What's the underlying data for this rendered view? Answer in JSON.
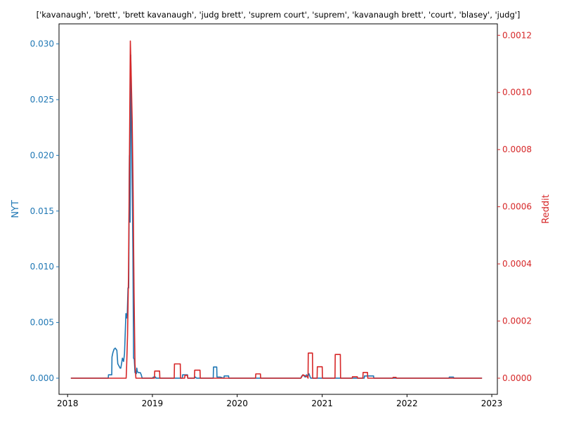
{
  "chart_data": {
    "type": "line",
    "title": "['kavanaugh', 'brett', 'brett kavanaugh', 'judg brett', 'suprem court', 'suprem', 'kavanaugh brett', 'court', 'blasey', 'judg']",
    "xlabel": "",
    "x_ticks": [
      "2018",
      "2019",
      "2020",
      "2021",
      "2022",
      "2023"
    ],
    "x_range": [
      "2017-11-25",
      "2023-01-25"
    ],
    "y_left": {
      "label": "NYT",
      "color": "#1f77b4",
      "ylim": [
        -0.00145,
        0.0318
      ],
      "ticks": [
        "0.000",
        "0.005",
        "0.010",
        "0.015",
        "0.020",
        "0.025",
        "0.030"
      ]
    },
    "y_right": {
      "label": "Reddit",
      "color": "#d62728",
      "ylim": [
        -5.65e-05,
        0.00124
      ],
      "ticks": [
        "0.0000",
        "0.0002",
        "0.0004",
        "0.0006",
        "0.0008",
        "0.0010",
        "0.0012"
      ]
    },
    "series": [
      {
        "name": "NYT",
        "axis": "left",
        "color": "#1f77b4",
        "x": [
          "2018-01-15",
          "2018-06-25",
          "2018-06-26",
          "2018-07-10",
          "2018-07-11",
          "2018-07-15",
          "2018-07-20",
          "2018-07-25",
          "2018-08-01",
          "2018-08-05",
          "2018-08-10",
          "2018-08-15",
          "2018-08-18",
          "2018-08-22",
          "2018-08-25",
          "2018-08-30",
          "2018-09-03",
          "2018-09-06",
          "2018-09-09",
          "2018-09-12",
          "2018-09-15",
          "2018-09-18",
          "2018-09-21",
          "2018-09-24",
          "2018-09-27",
          "2018-09-30",
          "2018-10-03",
          "2018-10-06",
          "2018-10-09",
          "2018-10-12",
          "2018-10-15",
          "2018-10-18",
          "2018-10-21",
          "2018-10-24",
          "2018-10-26",
          "2018-10-28",
          "2018-11-01",
          "2018-11-10",
          "2018-11-14",
          "2018-11-18",
          "2018-11-22",
          "2018-11-30",
          "2018-12-01",
          "2019-01-01",
          "2019-01-05",
          "2019-01-15",
          "2019-01-16",
          "2019-05-10",
          "2019-05-11",
          "2019-06-01",
          "2019-06-02",
          "2019-07-01",
          "2019-07-05",
          "2019-07-10",
          "2019-09-20",
          "2019-09-21",
          "2019-10-05",
          "2019-10-06",
          "2019-10-20",
          "2019-11-05",
          "2019-11-06",
          "2019-11-25",
          "2019-11-26",
          "2020-10-01",
          "2020-10-05",
          "2020-10-10",
          "2020-10-20",
          "2020-10-25",
          "2020-11-01",
          "2020-11-05",
          "2020-11-12",
          "2020-11-20",
          "2021-07-01",
          "2021-07-02",
          "2021-08-10",
          "2021-08-11",
          "2022-07-01",
          "2022-07-02",
          "2022-07-20",
          "2022-07-21",
          "2022-11-20"
        ],
        "values": [
          0.0,
          0.0,
          0.0003,
          0.0003,
          0.0019,
          0.0023,
          0.0026,
          0.0027,
          0.0025,
          0.0013,
          0.0011,
          0.0009,
          0.0009,
          0.0014,
          0.0018,
          0.0015,
          0.0022,
          0.004,
          0.0058,
          0.0054,
          0.0059,
          0.0081,
          0.0081,
          0.02,
          0.014,
          0.029,
          0.0233,
          0.0173,
          0.0115,
          0.0018,
          0.0017,
          0.0005,
          0.0005,
          0.0004,
          0.0009,
          0.0006,
          0.0005,
          0.0005,
          0.0003,
          0.0,
          0.0,
          0.0,
          0.0,
          0.0,
          0.0001,
          0.0001,
          0.0,
          0.0,
          0.0003,
          0.0003,
          0.0,
          0.0,
          0.0001,
          0.0,
          0.0,
          0.001,
          0.001,
          0.0001,
          0.0001,
          0.0,
          0.0002,
          0.0002,
          0.0,
          0.0,
          0.0002,
          0.0003,
          0.0001,
          0.0003,
          0.0002,
          0.0004,
          0.0,
          0.0,
          0.0,
          0.0002,
          0.0002,
          0.0,
          0.0,
          0.0001,
          0.0001,
          0.0,
          0.0
        ]
      },
      {
        "name": "Reddit",
        "axis": "right",
        "color": "#d62728",
        "x": [
          "2018-01-15",
          "2018-06-20",
          "2018-06-21",
          "2018-07-10",
          "2018-07-11",
          "2018-09-10",
          "2018-09-12",
          "2018-09-16",
          "2018-09-20",
          "2018-09-24",
          "2018-09-28",
          "2018-10-02",
          "2018-10-06",
          "2018-10-10",
          "2018-10-14",
          "2018-10-18",
          "2018-10-22",
          "2018-10-26",
          "2019-01-10",
          "2019-01-11",
          "2019-02-01",
          "2019-02-02",
          "2019-04-05",
          "2019-04-06",
          "2019-05-01",
          "2019-05-02",
          "2019-05-20",
          "2019-05-21",
          "2019-06-01",
          "2019-06-02",
          "2019-07-01",
          "2019-07-02",
          "2019-07-25",
          "2019-07-26",
          "2020-03-20",
          "2020-03-21",
          "2020-04-10",
          "2020-04-11",
          "2020-10-01",
          "2020-10-05",
          "2020-10-10",
          "2020-10-20",
          "2020-10-30",
          "2020-11-01",
          "2020-11-02",
          "2020-11-20",
          "2020-11-21",
          "2020-12-10",
          "2020-12-11",
          "2021-01-01",
          "2021-01-02",
          "2021-02-25",
          "2021-02-26",
          "2021-03-20",
          "2021-03-21",
          "2021-05-10",
          "2021-05-11",
          "2021-06-01",
          "2021-06-02",
          "2021-06-25",
          "2021-06-26",
          "2021-07-15",
          "2021-07-16",
          "2021-11-01",
          "2021-11-02",
          "2021-11-15",
          "2021-11-16",
          "2022-11-20"
        ],
        "values": [
          0.0,
          0.0,
          0.0,
          0.0,
          0.0,
          0.0,
          4e-05,
          0.00015,
          0.00035,
          0.00075,
          0.00118,
          0.00105,
          0.0009,
          0.00065,
          0.0003,
          5e-05,
          0.0,
          0.0,
          0.0,
          2.5e-05,
          2.5e-05,
          0.0,
          0.0,
          5e-05,
          5e-05,
          0.0,
          0.0,
          1e-05,
          1e-05,
          0.0,
          0.0,
          2.8e-05,
          2.8e-05,
          0.0,
          0.0,
          1.5e-05,
          1.5e-05,
          0.0,
          0.0,
          5e-06,
          1.2e-05,
          8e-06,
          4e-06,
          0.0,
          8.8e-05,
          8.8e-05,
          0.0,
          0.0,
          4e-05,
          4e-05,
          0.0,
          0.0,
          8.3e-05,
          8.3e-05,
          0.0,
          0.0,
          5e-06,
          5e-06,
          0.0,
          0.0,
          2e-05,
          2e-05,
          0.0,
          0.0,
          3e-06,
          3e-06,
          0.0,
          0.0
        ]
      }
    ],
    "grid": false,
    "legend": "none"
  }
}
